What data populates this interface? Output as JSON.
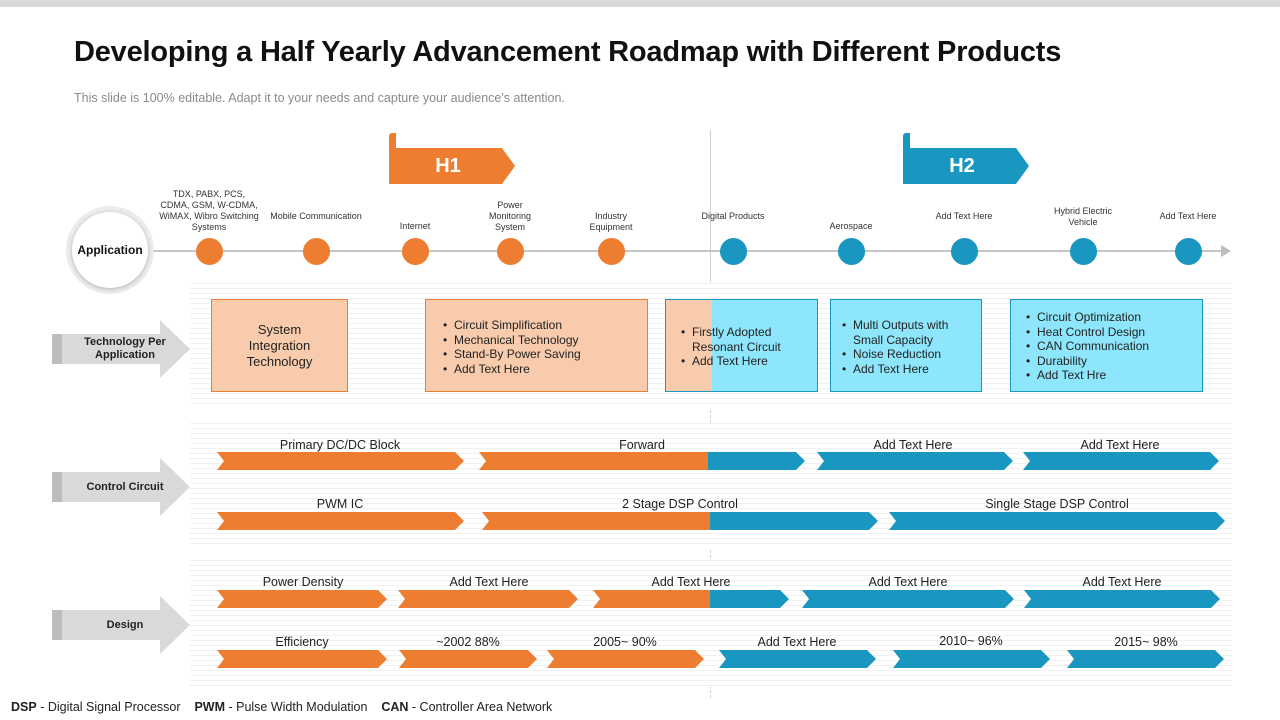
{
  "title": "Developing a Half Yearly Advancement Roadmap with Different Products",
  "subtitle": "This slide is 100% editable. Adapt it to your needs and capture your audience's attention.",
  "colors": {
    "orange": "#ed7d31",
    "blue": "#1a97c0",
    "peach": "#f8cbad",
    "cyan": "#8de6fb",
    "grey": "#d9d9d9"
  },
  "halves": {
    "h1": "H1",
    "h2": "H2"
  },
  "application": {
    "label": "Application",
    "milestones": [
      "TDX, PABX, PCS, CDMA, GSM, W-CDMA, WiMAX, Wibro Switching Systems",
      "Mobile Communication",
      "Internet",
      "Power Monitoring System",
      "Industry Equipment",
      "Digital Products",
      "Aerospace",
      "Add Text Here",
      "Hybrid Electric Vehicle",
      "Add Text Here"
    ]
  },
  "rows": {
    "technology": "Technology Per Application",
    "control": "Control Circuit",
    "design": "Design"
  },
  "tech_boxes": {
    "box1": "System Integration Technology",
    "box2": [
      "Circuit Simplification",
      "Mechanical Technology",
      "Stand-By Power Saving",
      "Add Text Here"
    ],
    "box3": [
      "Firstly Adopted Resonant Circuit",
      "Add Text Here"
    ],
    "box4": [
      "Multi Outputs with Small Capacity",
      "Noise Reduction",
      "Add Text Here"
    ],
    "box5": [
      "Circuit Optimization",
      "Heat Control Design",
      "CAN Communication",
      "Durability",
      "Add Text Hre"
    ]
  },
  "control_bars": {
    "row1": [
      "Primary DC/DC Block",
      "Forward",
      "Add Text Here",
      "Add Text Here"
    ],
    "row2": [
      "PWM IC",
      "2 Stage DSP Control",
      "Single Stage DSP Control"
    ]
  },
  "design_bars": {
    "row1": [
      "Power Density",
      "Add Text Here",
      "Add Text Here",
      "Add Text Here",
      "Add Text Here"
    ],
    "row2": [
      "Efficiency",
      "~2002 88%",
      "2005~ 90%",
      "Add Text Here",
      "2010~ 96%",
      "2015~ 98%"
    ]
  },
  "footnote": {
    "dsp_abbr": "DSP",
    "dsp_text": "- Digital Signal Processor",
    "pwm_abbr": "PWM",
    "pwm_text": "- Pulse Width Modulation",
    "can_abbr": "CAN",
    "can_text": "- Controller Area Network"
  }
}
